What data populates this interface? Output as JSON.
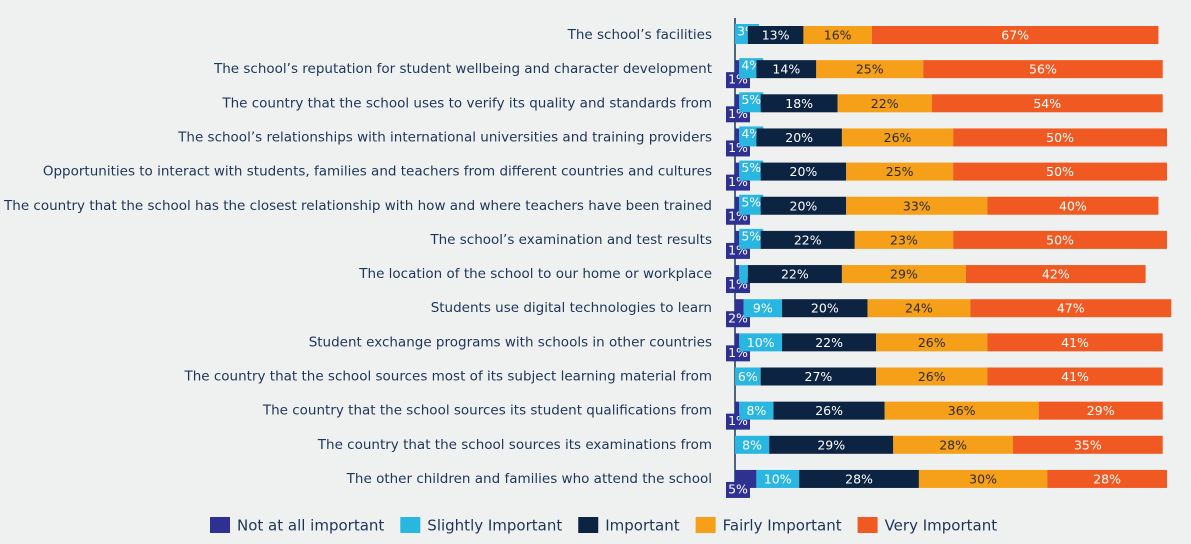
{
  "chart_data": {
    "type": "stacked-bar-horizontal",
    "categories": [
      "The school’s facilities",
      "The school’s reputation for student wellbeing and character development",
      "The country that the school uses to verify its quality and standards from",
      "The school’s relationships with international universities and training providers",
      "Opportunities to interact with students, families and teachers from different countries and cultures",
      "The country that the school has the closest relationship with how and where teachers have been trained",
      "The school’s examination and test results",
      "The location of the school to our home or workplace",
      "Students use digital technologies to learn",
      "Student exchange programs with schools in other countries",
      "The country that the school sources most of its subject learning material from",
      "The country that the school sources its student qualifications from",
      "The country that the school sources its examinations from",
      "The other children and families who attend the school"
    ],
    "series": [
      {
        "name": "Not at all important",
        "color": "#2e3192",
        "values": [
          null,
          1,
          1,
          1,
          1,
          1,
          1,
          1,
          2,
          1,
          null,
          1,
          null,
          5
        ],
        "value_labels": [
          null,
          "1%",
          "1%",
          "1%",
          "1%",
          "1%",
          "1%",
          "1%",
          "2%",
          "1%",
          null,
          "1%",
          null,
          "5%"
        ]
      },
      {
        "name": "Slightly Important",
        "color": "#29b6e0",
        "values": [
          3,
          4,
          5,
          4,
          5,
          5,
          5,
          2,
          9,
          10,
          6,
          8,
          8,
          10
        ],
        "value_labels": [
          "3%",
          "4%",
          "5%",
          "4%",
          "5%",
          "5%",
          "5%",
          null,
          "9%",
          "10%",
          "6%",
          "8%",
          "8%",
          "10%"
        ]
      },
      {
        "name": "Important",
        "color": "#0c2442",
        "values": [
          13,
          14,
          18,
          20,
          20,
          20,
          22,
          22,
          20,
          22,
          27,
          26,
          29,
          28
        ],
        "value_labels": [
          "13%",
          "14%",
          "18%",
          "20%",
          "20%",
          "20%",
          "22%",
          "22%",
          "20%",
          "22%",
          "27%",
          "26%",
          "29%",
          "28%"
        ]
      },
      {
        "name": "Fairly Important",
        "color": "#f6a01a",
        "values": [
          16,
          25,
          22,
          26,
          25,
          33,
          23,
          29,
          24,
          26,
          26,
          36,
          28,
          30
        ],
        "value_labels": [
          "16%",
          "25%",
          "22%",
          "26%",
          "25%",
          "33%",
          "23%",
          "29%",
          "24%",
          "26%",
          "26%",
          "36%",
          "28%",
          "30%"
        ]
      },
      {
        "name": "Very Important",
        "color": "#f05a22",
        "values": [
          67,
          56,
          54,
          50,
          50,
          40,
          50,
          42,
          47,
          41,
          41,
          29,
          35,
          28
        ],
        "value_labels": [
          "67%",
          "56%",
          "54%",
          "50%",
          "50%",
          "40%",
          "50%",
          "42%",
          "47%",
          "41%",
          "41%",
          "29%",
          "35%",
          "28%"
        ]
      }
    ]
  }
}
